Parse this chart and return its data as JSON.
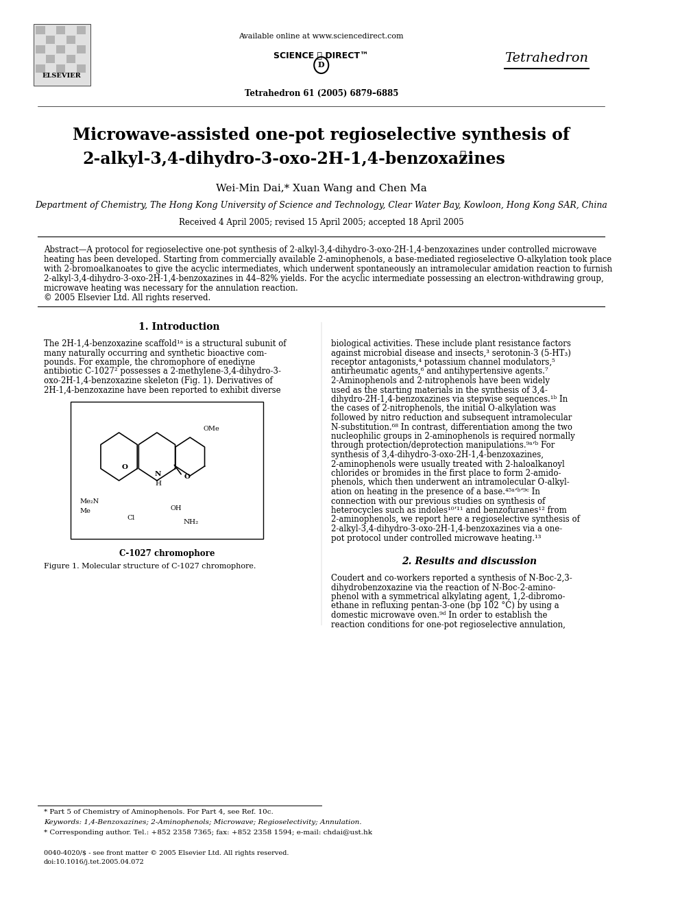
{
  "bg_color": "#ffffff",
  "title_line1": "Microwave-assisted one-pot regioselective synthesis of",
  "title_line2": "2-alkyl-3,4-dihydro-3-oxo-2H-1,4-benzoxazines",
  "title_star": "★",
  "authors": "Wei-Min Dai,* Xuan Wang and Chen Ma",
  "affiliation": "Department of Chemistry, The Hong Kong University of Science and Technology, Clear Water Bay, Kowloon, Hong Kong SAR, China",
  "received": "Received 4 April 2005; revised 15 April 2005; accepted 18 April 2005",
  "header_available": "Available online at www.sciencedirect.com",
  "header_sciencedirect": "SCIENCE ⓓ DIRECT™",
  "header_journal": "Tetrahedron",
  "header_citation": "Tetrahedron 61 (2005) 6879–6885",
  "elsevier_text": "ELSEVIER",
  "abstract_title": "Abstract",
  "abstract_body": "A protocol for regioselective one-pot synthesis of 2-alkyl-3,4-dihydro-3-oxo-2H-1,4-benzoxazines under controlled microwave heating has been developed. Starting from commercially available 2-aminophenols, a base-mediated regioselective O-alkylation took place with 2-bromoalkanoates to give the acyclic intermediates, which underwent spontaneously an intramolecular amidation reaction to furnish 2-alkyl-3,4-dihydro-3-oxo-2H-1,4-benzoxazines in 44–82% yields. For the acyclic intermediate possessing an electron-withdrawing group, microwave heating was necessary for the annulation reaction.\n© 2005 Elsevier Ltd. All rights reserved.",
  "section1_title": "1. Introduction",
  "section1_left": "The 2H-1,4-benzoxazine scaffold¹ᵃ is a structural subunit of many naturally occurring and synthetic bioactive compounds. For example, the chromophore of enediyne antibiotic C-1027² possesses a 2-methylene-3,4-dihydro-3-oxo-2H-1,4-benzoxazine skeleton (Fig. 1). Derivatives of 2H-1,4-benzoxazine have been reported to exhibit diverse",
  "section1_right": "biological activities. These include plant resistance factors against microbial disease and insects,³ serotonin-3 (5-HT₃) receptor antagonists,⁴ potassium channel modulators,⁵ antirheumatic agents,⁶ and antihypertensive agents.⁷ 2-Aminophenols and 2-nitrophenols have been widely used as the starting materials in the synthesis of 3,4-dihydro-2H-1,4-benzoxazines via stepwise sequences.¹ᵇ In the cases of 2-nitrophenols, the initial O-alkylation was followed by nitro reduction and subsequent intramolecular N-substitution.⁶⁸ In contrast, differentiation among the two nucleophilic groups in 2-aminophenols is required normally through protection/deprotection manipulations.⁹ᵃ‘ᵇ For synthesis of 3,4-dihydro-3-oxo-2H-1,4-benzoxazines, 2-aminophenols were usually treated with 2-haloalkanoyl chlorides or bromides in the first place to form 2-amidophenols, which then underwent an intramolecular O-alkylation on heating in the presence of a base.⁴⁵ᵃ‘ᵇ‘⁹ᶜ In connection with our previous studies on synthesis of heterocycles such as indoles¹⁰‘¹¹ and benzofuranes¹² from 2-aminophenols, we report here a regioselective synthesis of 2-alkyl-3,4-dihydro-3-oxo-2H-1,4-benzoxazines via a one-pot protocol under controlled microwave heating.¹³",
  "section2_title": "2. Results and discussion",
  "section2_text": "Coudert and co-workers reported a synthesis of N-Boc-2,3-dihydrobenzoxazine via the reaction of N-Boc-2-aminophenol with a symmetrical alkylating agent, 1,2-dibromoethane in refluxing pentan-3-one (bp 102 °C) by using a domestic microwave oven.⁹ᵈ In order to establish the reaction conditions for one-pot regioselective annulation,",
  "figure_caption": "Figure 1. Molecular structure of C-1027 chromophore.",
  "fig_label": "C-1027 chromophore",
  "footnote_star": "* Part 5 of Chemistry of Aminophenols. For Part 4, see Ref. 10c.",
  "keywords": "Keywords: 1,4-Benzoxazines; 2-Aminophenols; Microwave; Regioselectivity; Annulation.",
  "corresponding": "* Corresponding author. Tel.: +852 2358 7365; fax: +852 2358 1594; e-mail: chdai@ust.hk",
  "footer1": "0040-4020/$ - see front matter © 2005 Elsevier Ltd. All rights reserved.",
  "footer2": "doi:10.1016/j.tet.2005.04.072"
}
